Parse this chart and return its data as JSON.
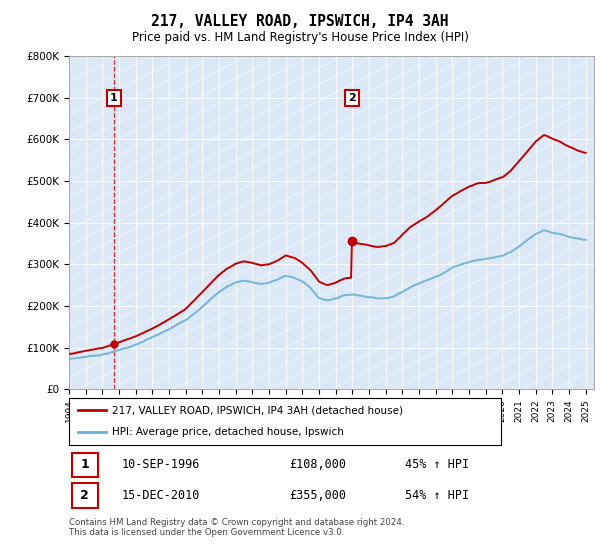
{
  "title": "217, VALLEY ROAD, IPSWICH, IP4 3AH",
  "subtitle": "Price paid vs. HM Land Registry's House Price Index (HPI)",
  "legend_line1": "217, VALLEY ROAD, IPSWICH, IP4 3AH (detached house)",
  "legend_line2": "HPI: Average price, detached house, Ipswich",
  "sale1_date": "10-SEP-1996",
  "sale1_price": "£108,000",
  "sale1_hpi": "45% ↑ HPI",
  "sale2_date": "15-DEC-2010",
  "sale2_price": "£355,000",
  "sale2_hpi": "54% ↑ HPI",
  "footer": "Contains HM Land Registry data © Crown copyright and database right 2024.\nThis data is licensed under the Open Government Licence v3.0.",
  "hpi_color": "#6baed6",
  "price_color": "#c00000",
  "grid_color": "#c8d8e8",
  "bg_color": "#dce8f5",
  "ylim": [
    0,
    800000
  ],
  "yticks": [
    0,
    100000,
    200000,
    300000,
    400000,
    500000,
    600000,
    700000,
    800000
  ],
  "ytick_labels": [
    "£0",
    "£100K",
    "£200K",
    "£300K",
    "£400K",
    "£500K",
    "£600K",
    "£700K",
    "£800K"
  ],
  "sale1_year": 1996.7,
  "sale2_year": 2010.96,
  "sale1_price_val": 108000,
  "sale2_price_val": 355000,
  "xmin": 1994,
  "xmax": 2025
}
